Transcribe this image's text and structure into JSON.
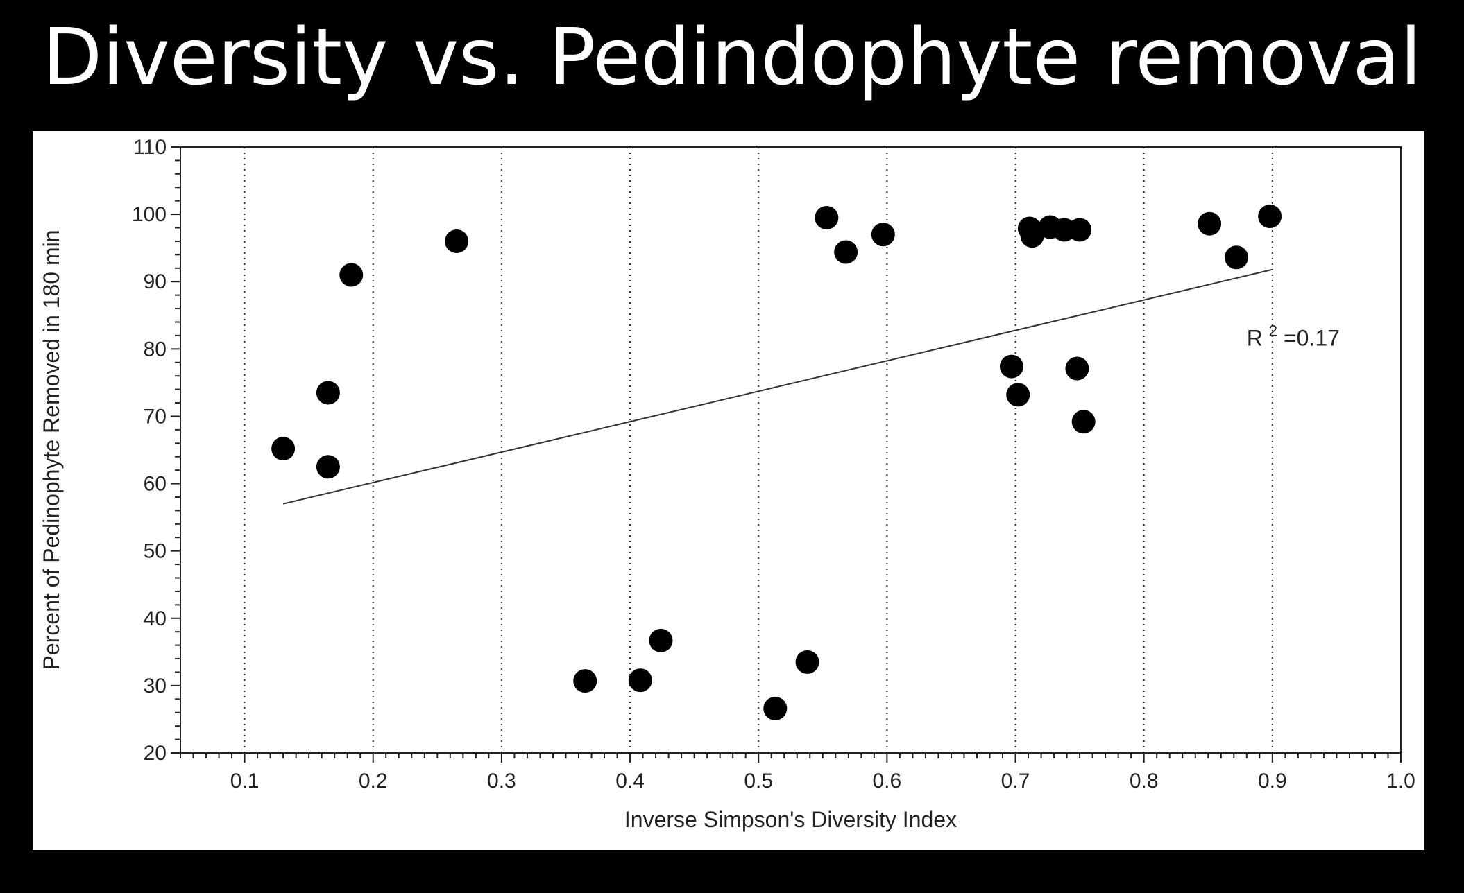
{
  "slide": {
    "title": "Diversity vs. Pedindophyte removal",
    "background_color": "#000000",
    "title_color": "#ffffff"
  },
  "chart_data": {
    "type": "scatter",
    "xlabel": "Inverse Simpson's Diversity Index",
    "ylabel": "Percent of Pedinophyte Removed in 180 min",
    "xlim": [
      0.05,
      1.0
    ],
    "ylim": [
      20,
      110
    ],
    "x_ticks": [
      0.1,
      0.2,
      0.3,
      0.4,
      0.5,
      0.6,
      0.7,
      0.8,
      0.9,
      1.0
    ],
    "x_tick_labels": [
      "0.1",
      "0.2",
      "0.3",
      "0.4",
      "0.5",
      "0.6",
      "0.7",
      "0.8",
      "0.9",
      "1.0"
    ],
    "y_ticks": [
      20,
      30,
      40,
      50,
      60,
      70,
      80,
      90,
      100,
      110
    ],
    "y_tick_labels": [
      "20",
      "30",
      "40",
      "50",
      "60",
      "70",
      "80",
      "90",
      "100",
      "110"
    ],
    "x_minor_step": 0.01,
    "y_minor_step": 2,
    "grid": "vertical-dotted",
    "marker_color": "#000000",
    "points": [
      {
        "x": 0.13,
        "y": 65.2
      },
      {
        "x": 0.165,
        "y": 73.5
      },
      {
        "x": 0.165,
        "y": 62.5
      },
      {
        "x": 0.183,
        "y": 91.0
      },
      {
        "x": 0.265,
        "y": 96.0
      },
      {
        "x": 0.365,
        "y": 30.7
      },
      {
        "x": 0.408,
        "y": 30.8
      },
      {
        "x": 0.424,
        "y": 36.7
      },
      {
        "x": 0.513,
        "y": 26.6
      },
      {
        "x": 0.538,
        "y": 33.5
      },
      {
        "x": 0.553,
        "y": 99.5
      },
      {
        "x": 0.568,
        "y": 94.4
      },
      {
        "x": 0.597,
        "y": 97.0
      },
      {
        "x": 0.697,
        "y": 77.4
      },
      {
        "x": 0.702,
        "y": 73.2
      },
      {
        "x": 0.711,
        "y": 97.9
      },
      {
        "x": 0.713,
        "y": 96.8
      },
      {
        "x": 0.727,
        "y": 98.1
      },
      {
        "x": 0.738,
        "y": 97.7
      },
      {
        "x": 0.748,
        "y": 77.1
      },
      {
        "x": 0.75,
        "y": 97.7
      },
      {
        "x": 0.753,
        "y": 69.2
      },
      {
        "x": 0.851,
        "y": 98.6
      },
      {
        "x": 0.872,
        "y": 93.6
      },
      {
        "x": 0.898,
        "y": 99.7
      }
    ],
    "trendline": {
      "x": [
        0.13,
        0.9
      ],
      "y": [
        57.0,
        91.8
      ]
    },
    "annotation": {
      "base": "R",
      "superscript": "2",
      "rest": "=0.17",
      "x": 0.88,
      "y": 80.5
    }
  }
}
